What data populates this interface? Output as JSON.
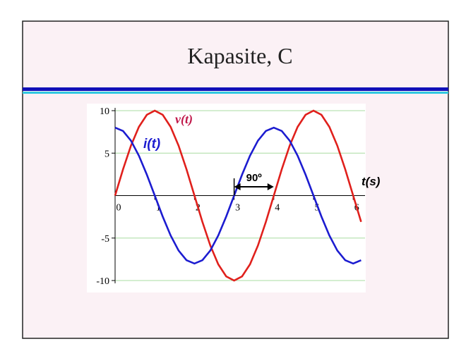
{
  "slide": {
    "title": "Kapasite, C"
  },
  "chart_data": {
    "type": "line",
    "x": [
      0,
      0.2,
      0.4,
      0.6,
      0.8,
      1,
      1.2,
      1.4,
      1.6,
      1.8,
      2,
      2.2,
      2.4,
      2.6,
      2.8,
      3,
      3.2,
      3.4,
      3.6,
      3.8,
      4,
      4.2,
      4.4,
      4.6,
      4.8,
      5,
      5.2,
      5.4,
      5.6,
      5.8,
      6,
      6.2
    ],
    "series": [
      {
        "name": "v(t)",
        "color": "#e0201c",
        "values": [
          0,
          3.09,
          5.88,
          8.09,
          9.51,
          10,
          9.51,
          8.09,
          5.88,
          3.09,
          0,
          -3.09,
          -5.88,
          -8.09,
          -9.51,
          -10,
          -9.51,
          -8.09,
          -5.88,
          -3.09,
          0,
          3.09,
          5.88,
          8.09,
          9.51,
          10,
          9.51,
          8.09,
          5.88,
          3.09,
          0,
          -3.09
        ]
      },
      {
        "name": "i(t)",
        "color": "#1c1cd0",
        "values": [
          8,
          7.61,
          6.47,
          4.7,
          2.47,
          0,
          -2.47,
          -4.7,
          -6.47,
          -7.61,
          -8,
          -7.61,
          -6.47,
          -4.7,
          -2.47,
          0,
          2.47,
          4.7,
          6.47,
          7.61,
          8,
          7.61,
          6.47,
          4.7,
          2.47,
          0,
          -2.47,
          -4.7,
          -6.47,
          -7.61,
          -8,
          -7.61
        ]
      }
    ],
    "xlim": [
      0,
      6.2
    ],
    "ylim": [
      -10,
      10
    ],
    "xticks": [
      0,
      1,
      2,
      3,
      4,
      5,
      6
    ],
    "yticks": [
      -10,
      -5,
      5,
      10
    ],
    "x_label": "t(s)",
    "annotation": "90º",
    "grid": true,
    "grid_color": "#a8dca0"
  }
}
